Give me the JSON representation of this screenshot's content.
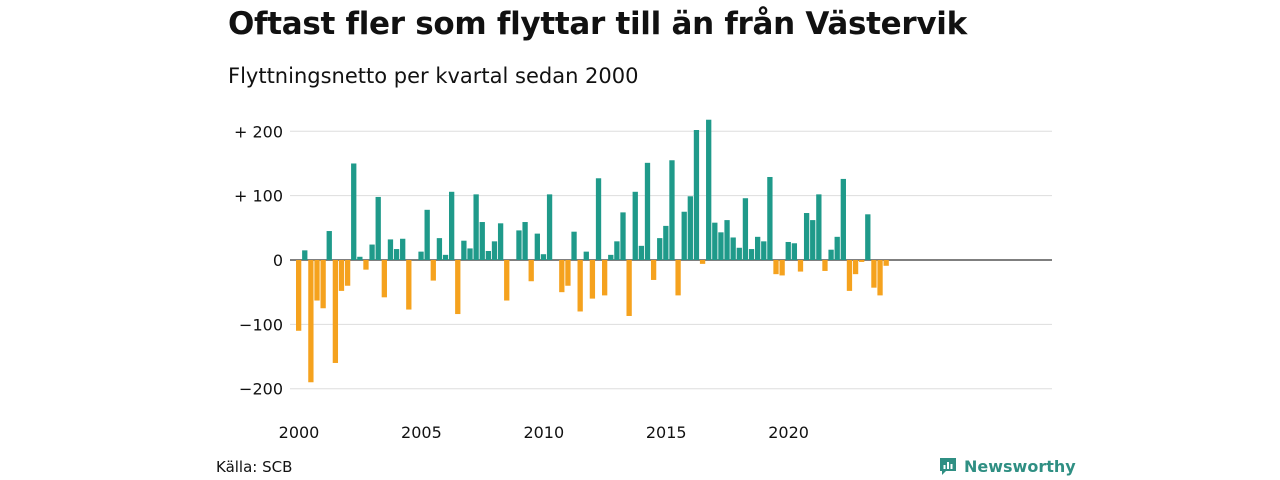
{
  "title": "Oftast fler som flyttar till än från Västervik",
  "subtitle": "Flyttningsnetto per kvartal sedan 2000",
  "source": "Källa: SCB",
  "brand": "Newsworthy",
  "colors": {
    "positive": "#1f9a8a",
    "negative": "#f5a21e",
    "grid": "#dddddd",
    "brand": "#2f8f83"
  },
  "chart_data": {
    "type": "bar",
    "x_start": "2000 Q1",
    "x_ticks": [
      "2000",
      "2005",
      "2010",
      "2015",
      "2020"
    ],
    "y_ticks": [
      "+ 200",
      "+ 100",
      "0",
      "−100",
      "−200"
    ],
    "ylim": [
      -230,
      230
    ],
    "grid": true,
    "values": [
      -110,
      15,
      -190,
      -63,
      -75,
      45,
      -160,
      -48,
      -40,
      150,
      5,
      -15,
      24,
      98,
      -58,
      32,
      17,
      33,
      -77,
      0,
      13,
      78,
      -32,
      34,
      8,
      106,
      -84,
      30,
      18,
      102,
      59,
      14,
      29,
      57,
      -63,
      0,
      46,
      59,
      -33,
      41,
      9,
      102,
      0,
      -50,
      -40,
      44,
      -80,
      13,
      -60,
      127,
      -55,
      8,
      29,
      74,
      -87,
      106,
      22,
      151,
      -31,
      34,
      53,
      155,
      -55,
      75,
      99,
      202,
      -6,
      218,
      58,
      43,
      62,
      35,
      19,
      96,
      17,
      36,
      29,
      129,
      -22,
      -24,
      28,
      26,
      -18,
      73,
      62,
      102,
      -17,
      16,
      36,
      126,
      -48,
      -22,
      -3,
      71,
      -43,
      -55,
      -9
    ]
  }
}
